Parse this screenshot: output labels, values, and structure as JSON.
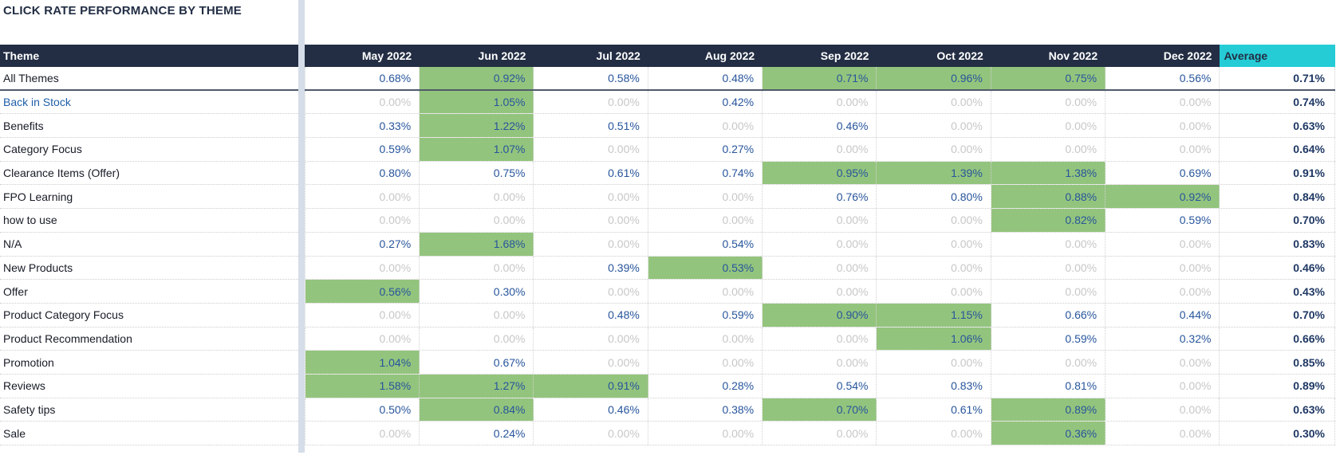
{
  "title": "CLICK RATE PERFORMANCE BY THEME",
  "table": {
    "theme_header": "Theme",
    "month_headers": [
      "May 2022",
      "Jun 2022",
      "Jul 2022",
      "Aug 2022",
      "Sep 2022",
      "Oct 2022",
      "Nov 2022",
      "Dec 2022"
    ],
    "average_header": "Average",
    "rows": [
      {
        "theme": "All Themes",
        "is_link": false,
        "values": [
          "0.68%",
          "0.92%",
          "0.58%",
          "0.48%",
          "0.71%",
          "0.96%",
          "0.75%",
          "0.56%"
        ],
        "highlighted": [
          false,
          true,
          false,
          false,
          true,
          true,
          true,
          false
        ],
        "average": "0.71%"
      },
      {
        "theme": "Back in Stock",
        "is_link": true,
        "values": [
          "0.00%",
          "1.05%",
          "0.00%",
          "0.42%",
          "0.00%",
          "0.00%",
          "0.00%",
          "0.00%"
        ],
        "highlighted": [
          false,
          true,
          false,
          false,
          false,
          false,
          false,
          false
        ],
        "average": "0.74%"
      },
      {
        "theme": "Benefits",
        "is_link": false,
        "values": [
          "0.33%",
          "1.22%",
          "0.51%",
          "0.00%",
          "0.46%",
          "0.00%",
          "0.00%",
          "0.00%"
        ],
        "highlighted": [
          false,
          true,
          false,
          false,
          false,
          false,
          false,
          false
        ],
        "average": "0.63%"
      },
      {
        "theme": "Category Focus",
        "is_link": false,
        "values": [
          "0.59%",
          "1.07%",
          "0.00%",
          "0.27%",
          "0.00%",
          "0.00%",
          "0.00%",
          "0.00%"
        ],
        "highlighted": [
          false,
          true,
          false,
          false,
          false,
          false,
          false,
          false
        ],
        "average": "0.64%"
      },
      {
        "theme": "Clearance Items (Offer)",
        "is_link": false,
        "values": [
          "0.80%",
          "0.75%",
          "0.61%",
          "0.74%",
          "0.95%",
          "1.39%",
          "1.38%",
          "0.69%"
        ],
        "highlighted": [
          false,
          false,
          false,
          false,
          true,
          true,
          true,
          false
        ],
        "average": "0.91%"
      },
      {
        "theme": "FPO Learning",
        "is_link": false,
        "values": [
          "0.00%",
          "0.00%",
          "0.00%",
          "0.00%",
          "0.76%",
          "0.80%",
          "0.88%",
          "0.92%"
        ],
        "highlighted": [
          false,
          false,
          false,
          false,
          false,
          false,
          true,
          true
        ],
        "average": "0.84%"
      },
      {
        "theme": "how to use",
        "is_link": false,
        "values": [
          "0.00%",
          "0.00%",
          "0.00%",
          "0.00%",
          "0.00%",
          "0.00%",
          "0.82%",
          "0.59%"
        ],
        "highlighted": [
          false,
          false,
          false,
          false,
          false,
          false,
          true,
          false
        ],
        "average": "0.70%"
      },
      {
        "theme": "N/A",
        "is_link": false,
        "values": [
          "0.27%",
          "1.68%",
          "0.00%",
          "0.54%",
          "0.00%",
          "0.00%",
          "0.00%",
          "0.00%"
        ],
        "highlighted": [
          false,
          true,
          false,
          false,
          false,
          false,
          false,
          false
        ],
        "average": "0.83%"
      },
      {
        "theme": "New Products",
        "is_link": false,
        "values": [
          "0.00%",
          "0.00%",
          "0.39%",
          "0.53%",
          "0.00%",
          "0.00%",
          "0.00%",
          "0.00%"
        ],
        "highlighted": [
          false,
          false,
          false,
          true,
          false,
          false,
          false,
          false
        ],
        "average": "0.46%"
      },
      {
        "theme": "Offer",
        "is_link": false,
        "values": [
          "0.56%",
          "0.30%",
          "0.00%",
          "0.00%",
          "0.00%",
          "0.00%",
          "0.00%",
          "0.00%"
        ],
        "highlighted": [
          true,
          false,
          false,
          false,
          false,
          false,
          false,
          false
        ],
        "average": "0.43%"
      },
      {
        "theme": "Product Category Focus",
        "is_link": false,
        "values": [
          "0.00%",
          "0.00%",
          "0.48%",
          "0.59%",
          "0.90%",
          "1.15%",
          "0.66%",
          "0.44%"
        ],
        "highlighted": [
          false,
          false,
          false,
          false,
          true,
          true,
          false,
          false
        ],
        "average": "0.70%"
      },
      {
        "theme": "Product Recommendation",
        "is_link": false,
        "values": [
          "0.00%",
          "0.00%",
          "0.00%",
          "0.00%",
          "0.00%",
          "1.06%",
          "0.59%",
          "0.32%"
        ],
        "highlighted": [
          false,
          false,
          false,
          false,
          false,
          true,
          false,
          false
        ],
        "average": "0.66%"
      },
      {
        "theme": "Promotion",
        "is_link": false,
        "values": [
          "1.04%",
          "0.67%",
          "0.00%",
          "0.00%",
          "0.00%",
          "0.00%",
          "0.00%",
          "0.00%"
        ],
        "highlighted": [
          true,
          false,
          false,
          false,
          false,
          false,
          false,
          false
        ],
        "average": "0.85%"
      },
      {
        "theme": "Reviews",
        "is_link": false,
        "values": [
          "1.58%",
          "1.27%",
          "0.91%",
          "0.28%",
          "0.54%",
          "0.83%",
          "0.81%",
          "0.00%"
        ],
        "highlighted": [
          true,
          true,
          true,
          false,
          false,
          false,
          false,
          false
        ],
        "average": "0.89%"
      },
      {
        "theme": "Safety tips",
        "is_link": false,
        "values": [
          "0.50%",
          "0.84%",
          "0.46%",
          "0.38%",
          "0.70%",
          "0.61%",
          "0.89%",
          "0.00%"
        ],
        "highlighted": [
          false,
          true,
          false,
          false,
          true,
          false,
          true,
          false
        ],
        "average": "0.63%"
      },
      {
        "theme": "Sale",
        "is_link": false,
        "values": [
          "0.00%",
          "0.24%",
          "0.00%",
          "0.00%",
          "0.00%",
          "0.00%",
          "0.36%",
          "0.00%"
        ],
        "highlighted": [
          false,
          false,
          false,
          false,
          false,
          false,
          true,
          false
        ],
        "average": "0.30%"
      }
    ]
  },
  "colors": {
    "header_bg": "#232e44",
    "header_text": "#ffffff",
    "average_header_bg": "#25ccd6",
    "highlight_green": "#93c47d",
    "value_blue": "#27559c",
    "zero_gray": "#c7c7c7",
    "average_value_navy": "#1f3864",
    "link_blue": "#1f5fa9",
    "pane_divider": "#d5dde9"
  }
}
